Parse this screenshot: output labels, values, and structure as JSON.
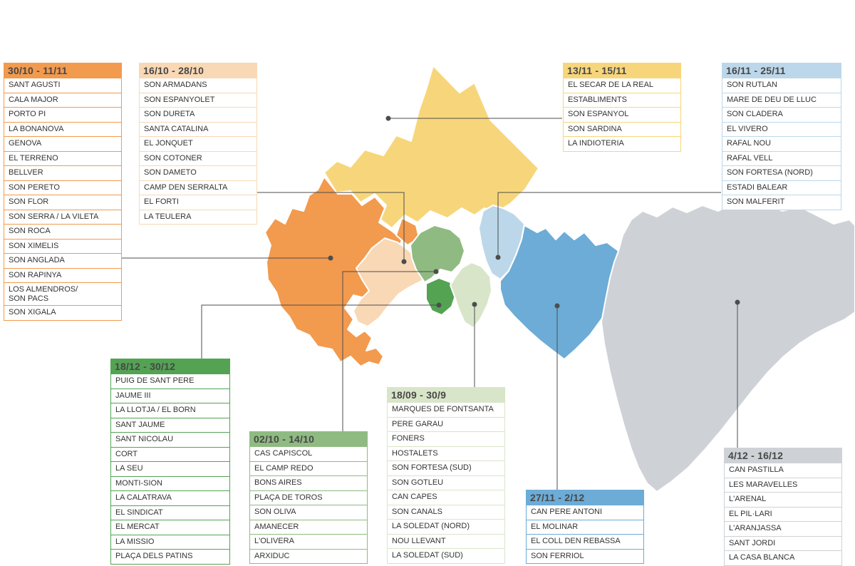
{
  "line_color": "#4d4d4d",
  "groups": [
    {
      "id": "west-orange",
      "date_range": "30/10 - 11/11",
      "color": "#F29A4E",
      "items": [
        "SANT AGUSTI",
        "CALA MAJOR",
        "PORTO PI",
        "LA BONANOVA",
        "GENOVA",
        "EL TERRENO",
        "BELLVER",
        "SON PERETO",
        "SON FLOR",
        "SON SERRA / LA VILETA",
        "SON ROCA",
        "SON XIMELIS",
        "SON ANGLADA",
        "SON RAPINYA",
        "LOS ALMENDROS/\nSON PACS",
        "SON XIGALA"
      ]
    },
    {
      "id": "center-west-peach",
      "date_range": "16/10 - 28/10",
      "color": "#F9D8B5",
      "items": [
        "SON ARMADANS",
        "SON ESPANYOLET",
        "SON DURETA",
        "SANTA CATALINA",
        "EL JONQUET",
        "SON COTONER",
        "SON DAMETO",
        "CAMP DEN SERRALTA",
        "EL FORTI",
        "LA TEULERA"
      ]
    },
    {
      "id": "north-yellow",
      "date_range": "13/11 - 15/11",
      "color": "#F7D67B",
      "items": [
        "EL SECAR DE LA REAL",
        "ESTABLIMENTS",
        "SON ESPANYOL",
        "SON SARDINA",
        "LA INDIOTERIA"
      ]
    },
    {
      "id": "northeast-lightblue",
      "date_range": "16/11 - 25/11",
      "color": "#BDD7EA",
      "items": [
        "SON RUTLAN",
        "MARE DE DEU DE LLUC",
        "SON CLADERA",
        "EL VIVERO",
        "RAFAL NOU",
        "RAFAL VELL",
        "SON FORTESA (NORD)",
        "ESTADI BALEAR",
        "SON MALFERIT"
      ]
    },
    {
      "id": "center-green",
      "date_range": "18/12 - 30/12",
      "color": "#53A353",
      "items": [
        "PUIG DE SANT PERE",
        "JAUME III",
        "LA LLOTJA / EL BORN",
        "SANT JAUME",
        "SANT NICOLAU",
        "CORT",
        "LA SEU",
        "MONTI-SION",
        "LA CALATRAVA",
        "EL SINDICAT",
        "EL MERCAT",
        "LA MISSIO",
        "PLAÇA DELS PATINS"
      ]
    },
    {
      "id": "north-center-mediumgreen",
      "date_range": "02/10 - 14/10",
      "color": "#8FBB82",
      "items": [
        "CAS CAPISCOL",
        "EL CAMP REDO",
        "BONS AIRES",
        "PLAÇA DE TOROS",
        "SON OLIVA",
        "AMANECER",
        "L'OLIVERA",
        "ARXIDUC"
      ]
    },
    {
      "id": "east-center-palegreen",
      "date_range": "18/09 - 30/9",
      "color": "#D9E5C9",
      "items": [
        "MARQUES DE FONTSANTA",
        "PERE GARAU",
        "FONERS",
        "HOSTALETS",
        "SON FORTESA (SUD)",
        "SON GOTLEU",
        "CAN CAPES",
        "SON CANALS",
        "LA SOLEDAT (NORD)",
        "NOU LLEVANT",
        "LA SOLEDAT (SUD)"
      ]
    },
    {
      "id": "east-blue",
      "date_range": "27/11 - 2/12",
      "color": "#6CACD7",
      "items": [
        "CAN PERE ANTONI",
        "EL MOLINAR",
        "EL COLL DEN REBASSA",
        "SON FERRIOL"
      ]
    },
    {
      "id": "southeast-gray",
      "date_range": "4/12 - 16/12",
      "color": "#CED2D7",
      "items": [
        "CAN PASTILLA",
        "LES MARAVELLES",
        "L'ARENAL",
        "EL PIL·LARI",
        "L'ARANJASSA",
        "SANT JORDI",
        "LA CASA BLANCA"
      ]
    }
  ]
}
